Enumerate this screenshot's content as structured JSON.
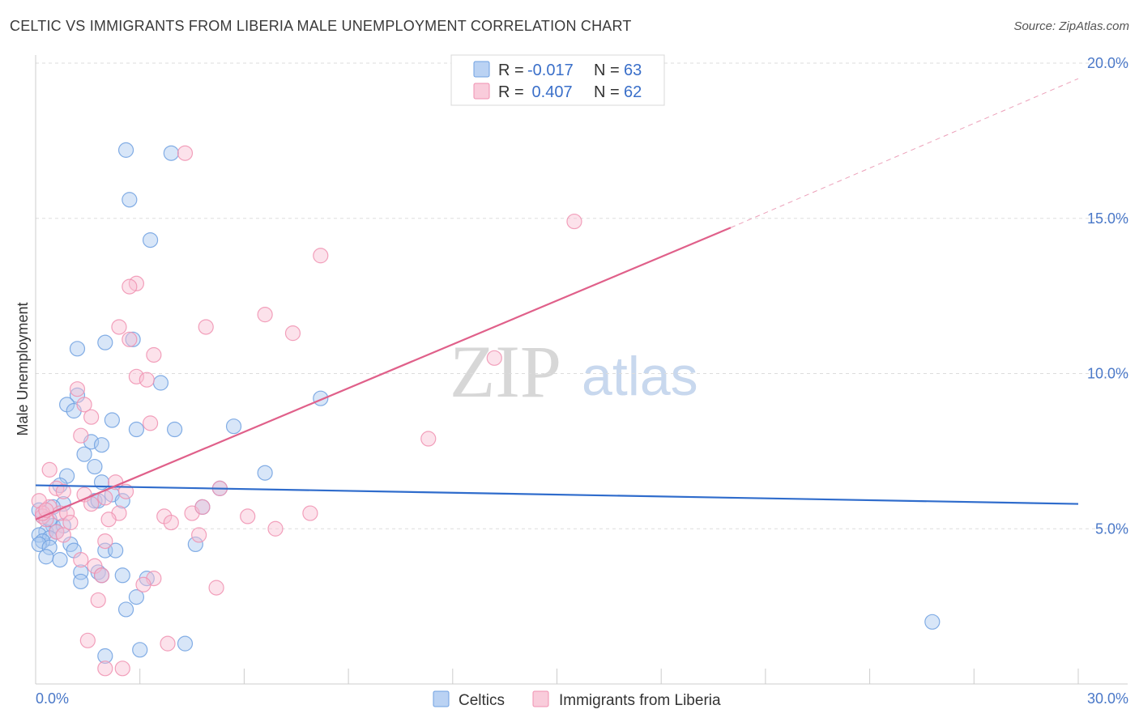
{
  "title": "CELTIC VS IMMIGRANTS FROM LIBERIA MALE UNEMPLOYMENT CORRELATION CHART",
  "source": "Source: ZipAtlas.com",
  "watermark": {
    "zip": "ZIP",
    "atlas": "atlas"
  },
  "chart_data": {
    "type": "scatter",
    "xlabel": "",
    "ylabel": "Male Unemployment",
    "xlim": [
      0,
      30
    ],
    "ylim": [
      0,
      20
    ],
    "x_tick_labels": {
      "min": "0.0%",
      "max": "30.0%"
    },
    "y_ticks": [
      5,
      10,
      15,
      20
    ],
    "y_tick_labels": [
      "5.0%",
      "10.0%",
      "15.0%",
      "20.0%"
    ],
    "legend": {
      "rows": [
        {
          "r_label": "R =",
          "r_value": "-0.017",
          "n_label": "N =",
          "n_value": "63"
        },
        {
          "r_label": "R =",
          "r_value": " 0.407",
          "n_label": "N =",
          "n_value": "62"
        }
      ]
    },
    "series": [
      {
        "name": "Celtics",
        "color": "#6fa0e0",
        "fill": "#a9c7f0",
        "line_color": "#2f6ccc",
        "trend": {
          "x": [
            0,
            30
          ],
          "y": [
            6.4,
            5.8
          ]
        },
        "points": [
          [
            2.6,
            17.2
          ],
          [
            3.9,
            17.1
          ],
          [
            2.7,
            15.6
          ],
          [
            3.3,
            14.3
          ],
          [
            2.8,
            11.1
          ],
          [
            2.0,
            11.0
          ],
          [
            1.2,
            10.8
          ],
          [
            3.6,
            9.7
          ],
          [
            1.2,
            9.3
          ],
          [
            8.2,
            9.2
          ],
          [
            0.9,
            9.0
          ],
          [
            1.1,
            8.8
          ],
          [
            2.2,
            8.5
          ],
          [
            5.7,
            8.3
          ],
          [
            4.0,
            8.2
          ],
          [
            2.9,
            8.2
          ],
          [
            1.6,
            7.8
          ],
          [
            1.9,
            7.7
          ],
          [
            1.4,
            7.4
          ],
          [
            1.7,
            7.0
          ],
          [
            6.6,
            6.8
          ],
          [
            0.9,
            6.7
          ],
          [
            0.7,
            6.4
          ],
          [
            1.9,
            6.5
          ],
          [
            5.3,
            6.3
          ],
          [
            2.2,
            6.1
          ],
          [
            1.7,
            5.9
          ],
          [
            2.5,
            5.9
          ],
          [
            0.8,
            5.8
          ],
          [
            1.8,
            5.9
          ],
          [
            0.5,
            5.7
          ],
          [
            4.8,
            5.7
          ],
          [
            0.1,
            5.6
          ],
          [
            0.2,
            5.4
          ],
          [
            0.5,
            5.1
          ],
          [
            0.8,
            5.1
          ],
          [
            0.3,
            4.9
          ],
          [
            0.6,
            4.9
          ],
          [
            0.1,
            4.8
          ],
          [
            0.4,
            4.7
          ],
          [
            0.2,
            4.6
          ],
          [
            0.1,
            4.5
          ],
          [
            1.0,
            4.5
          ],
          [
            4.6,
            4.5
          ],
          [
            0.4,
            4.4
          ],
          [
            2.0,
            4.3
          ],
          [
            2.3,
            4.3
          ],
          [
            1.1,
            4.3
          ],
          [
            0.3,
            4.1
          ],
          [
            0.7,
            4.0
          ],
          [
            1.3,
            3.6
          ],
          [
            1.8,
            3.6
          ],
          [
            2.5,
            3.5
          ],
          [
            3.2,
            3.4
          ],
          [
            1.9,
            3.5
          ],
          [
            1.3,
            3.3
          ],
          [
            2.9,
            2.8
          ],
          [
            2.6,
            2.4
          ],
          [
            25.8,
            2.0
          ],
          [
            4.3,
            1.3
          ],
          [
            3.0,
            1.1
          ],
          [
            2.0,
            0.9
          ],
          [
            0.4,
            5.3
          ]
        ]
      },
      {
        "name": "Immigrants from Liberia",
        "color": "#f090b0",
        "fill": "#f8bfd2",
        "line_color": "#e0608a",
        "trend": {
          "x": [
            0,
            20
          ],
          "y": [
            5.3,
            14.7
          ]
        },
        "trend_dash": {
          "x": [
            20,
            30
          ],
          "y": [
            14.7,
            19.5
          ]
        },
        "points": [
          [
            4.3,
            17.1
          ],
          [
            15.5,
            14.9
          ],
          [
            8.2,
            13.8
          ],
          [
            2.9,
            12.9
          ],
          [
            2.7,
            12.8
          ],
          [
            6.6,
            11.9
          ],
          [
            2.4,
            11.5
          ],
          [
            4.9,
            11.5
          ],
          [
            7.4,
            11.3
          ],
          [
            2.7,
            11.1
          ],
          [
            13.2,
            10.5
          ],
          [
            3.4,
            10.6
          ],
          [
            2.9,
            9.9
          ],
          [
            3.2,
            9.8
          ],
          [
            1.2,
            9.5
          ],
          [
            1.4,
            9.0
          ],
          [
            1.6,
            8.6
          ],
          [
            3.3,
            8.4
          ],
          [
            1.3,
            8.0
          ],
          [
            11.3,
            7.9
          ],
          [
            0.4,
            6.9
          ],
          [
            2.3,
            6.5
          ],
          [
            0.6,
            6.3
          ],
          [
            0.8,
            6.2
          ],
          [
            1.4,
            6.1
          ],
          [
            2.0,
            6.0
          ],
          [
            2.6,
            6.2
          ],
          [
            1.6,
            5.8
          ],
          [
            0.4,
            5.7
          ],
          [
            0.7,
            5.5
          ],
          [
            0.9,
            5.5
          ],
          [
            2.4,
            5.5
          ],
          [
            3.7,
            5.4
          ],
          [
            4.5,
            5.5
          ],
          [
            6.1,
            5.4
          ],
          [
            7.9,
            5.5
          ],
          [
            5.3,
            6.3
          ],
          [
            4.8,
            5.7
          ],
          [
            0.2,
            5.4
          ],
          [
            0.3,
            5.3
          ],
          [
            1.0,
            5.2
          ],
          [
            2.1,
            5.3
          ],
          [
            3.9,
            5.2
          ],
          [
            0.6,
            4.9
          ],
          [
            0.8,
            4.8
          ],
          [
            4.7,
            4.8
          ],
          [
            6.9,
            5.0
          ],
          [
            2.0,
            4.6
          ],
          [
            1.3,
            4.0
          ],
          [
            1.7,
            3.8
          ],
          [
            1.9,
            3.5
          ],
          [
            3.4,
            3.4
          ],
          [
            3.1,
            3.2
          ],
          [
            5.2,
            3.1
          ],
          [
            1.8,
            2.7
          ],
          [
            1.5,
            1.4
          ],
          [
            3.8,
            1.3
          ],
          [
            2.0,
            0.5
          ],
          [
            2.5,
            0.5
          ],
          [
            0.1,
            5.9
          ],
          [
            0.2,
            5.5
          ],
          [
            0.3,
            5.6
          ]
        ]
      }
    ]
  }
}
